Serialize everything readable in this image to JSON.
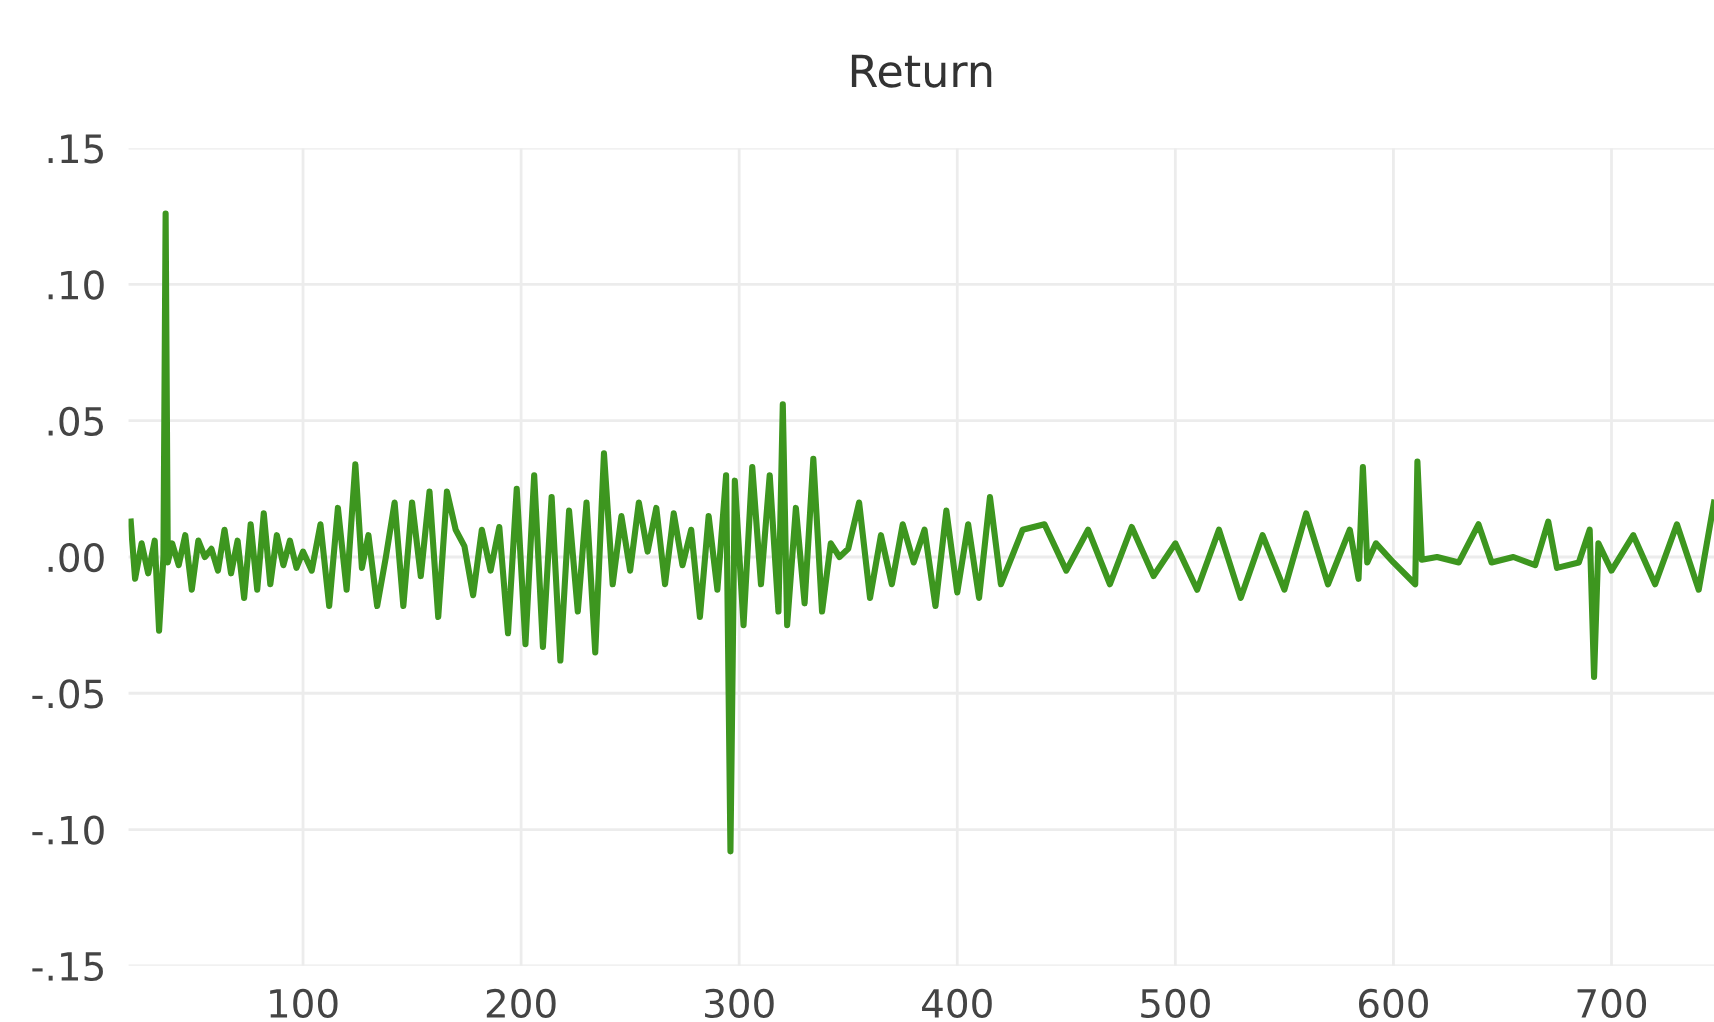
{
  "chart_data": {
    "type": "line",
    "title": "Return",
    "xlim": [
      20,
      747
    ],
    "xticks": [
      100,
      200,
      300,
      400,
      500,
      600,
      700
    ],
    "ylim": [
      -0.15,
      0.15
    ],
    "yticks": [
      {
        "value": 0.15,
        "label": ".15"
      },
      {
        "value": 0.1,
        "label": ".10"
      },
      {
        "value": 0.05,
        "label": ".05"
      },
      {
        "value": 0,
        "label": ".00"
      },
      {
        "value": -0.05,
        "label": "-.05"
      },
      {
        "value": -0.1,
        "label": "-.10"
      },
      {
        "value": -0.15,
        "label": "-.15"
      }
    ],
    "grid": true,
    "marker": "none",
    "line_style": "solid",
    "series": [
      {
        "color": "#3d961f",
        "x": [
          21,
          23,
          26,
          29,
          32,
          34,
          36,
          37,
          38,
          40,
          43,
          46,
          49,
          52,
          55,
          58,
          61,
          64,
          67,
          70,
          73,
          76,
          79,
          82,
          85,
          88,
          91,
          94,
          97,
          100,
          104,
          108,
          112,
          116,
          120,
          124,
          127,
          130,
          134,
          138,
          142,
          146,
          150,
          154,
          158,
          162,
          166,
          170,
          174,
          178,
          182,
          186,
          190,
          194,
          198,
          202,
          206,
          210,
          214,
          218,
          222,
          226,
          230,
          234,
          238,
          242,
          246,
          250,
          254,
          258,
          262,
          266,
          270,
          274,
          278,
          282,
          286,
          290,
          294,
          296,
          298,
          302,
          306,
          310,
          314,
          318,
          320,
          322,
          326,
          330,
          334,
          338,
          342,
          346,
          350,
          355,
          360,
          365,
          370,
          375,
          380,
          385,
          390,
          395,
          400,
          405,
          410,
          415,
          420,
          430,
          440,
          450,
          460,
          470,
          480,
          490,
          500,
          510,
          520,
          530,
          540,
          550,
          560,
          570,
          580,
          584,
          586,
          588,
          592,
          600,
          610,
          611,
          613,
          620,
          630,
          639,
          645,
          655,
          665,
          671,
          675,
          685,
          690,
          692,
          694,
          700,
          710,
          720,
          730,
          740,
          747
        ],
        "values": [
          0.013,
          -0.008,
          0.005,
          -0.006,
          0.006,
          -0.027,
          0.0,
          0.126,
          -0.002,
          0.005,
          -0.003,
          0.008,
          -0.012,
          0.006,
          0.0,
          0.003,
          -0.005,
          0.01,
          -0.006,
          0.006,
          -0.015,
          0.012,
          -0.012,
          0.016,
          -0.01,
          0.008,
          -0.003,
          0.006,
          -0.004,
          0.002,
          -0.005,
          0.012,
          -0.018,
          0.018,
          -0.012,
          0.034,
          -0.004,
          0.008,
          -0.018,
          0.0,
          0.02,
          -0.018,
          0.02,
          -0.007,
          0.024,
          -0.022,
          0.024,
          0.01,
          0.004,
          -0.014,
          0.01,
          -0.005,
          0.011,
          -0.028,
          0.025,
          -0.032,
          0.03,
          -0.033,
          0.022,
          -0.038,
          0.017,
          -0.02,
          0.02,
          -0.035,
          0.038,
          -0.01,
          0.015,
          -0.005,
          0.02,
          0.002,
          0.018,
          -0.01,
          0.016,
          -0.003,
          0.01,
          -0.022,
          0.015,
          -0.012,
          0.03,
          -0.108,
          0.028,
          -0.025,
          0.033,
          -0.01,
          0.03,
          -0.02,
          0.056,
          -0.025,
          0.018,
          -0.017,
          0.036,
          -0.02,
          0.005,
          0.0,
          0.003,
          0.02,
          -0.015,
          0.008,
          -0.01,
          0.012,
          -0.002,
          0.01,
          -0.018,
          0.017,
          -0.013,
          0.012,
          -0.015,
          0.022,
          -0.01,
          0.01,
          0.012,
          -0.005,
          0.01,
          -0.01,
          0.011,
          -0.007,
          0.005,
          -0.012,
          0.01,
          -0.015,
          0.008,
          -0.012,
          0.016,
          -0.01,
          0.01,
          -0.008,
          0.033,
          -0.002,
          0.005,
          -0.002,
          -0.01,
          0.035,
          -0.001,
          0.0,
          -0.002,
          0.012,
          -0.002,
          0.0,
          -0.003,
          0.013,
          -0.004,
          -0.002,
          0.01,
          -0.044,
          0.005,
          -0.005,
          0.008,
          -0.01,
          0.012,
          -0.012,
          0.02
        ]
      }
    ]
  }
}
